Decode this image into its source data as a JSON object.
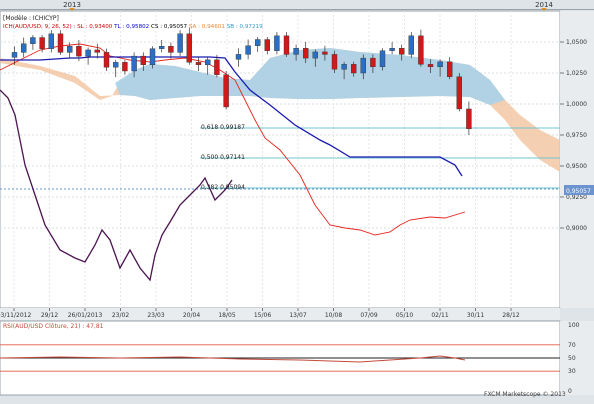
{
  "timeline": {
    "year_a": "2013",
    "year_b": "2014"
  },
  "main_panel": {
    "model": "[Modèle : ICHICYP]",
    "legend": [
      {
        "text": "ICH(AUD/USD, 9, 26, 52) :",
        "color": "#cc0000"
      },
      {
        "text": "SL : 0,93400",
        "color": "#cc0000"
      },
      {
        "text": "TL : 0,95802",
        "color": "#0000cc"
      },
      {
        "text": "CS : 0,95057",
        "color": "#000000"
      },
      {
        "text": "SA : 0,94601",
        "color": "#e08a3c"
      },
      {
        "text": "SB : 0,97219",
        "color": "#2f9ad0"
      }
    ],
    "y_ticks": [
      "1,0500",
      "1,0250",
      "1,0000",
      "0,9750",
      "0,9500",
      "0,9250",
      "0,9000"
    ],
    "x_ticks": [
      "03/11/2012",
      "29/12",
      "26/01/2013",
      "23/02",
      "23/03",
      "20/04",
      "18/05",
      "15/06",
      "13/07",
      "10/08",
      "07/09",
      "05/10",
      "02/11",
      "30/11",
      "28/12"
    ],
    "price_tag": "0,95057",
    "fib_labels": [
      "0,618 0,99187",
      "0,500 0,97141",
      "0,382 0,95094"
    ]
  },
  "rsi_panel": {
    "title": "RSI(AUD/USD Clôture, 21) : 47,81",
    "ticks": [
      "100",
      "70",
      "50",
      "30",
      "0"
    ]
  },
  "footer": {
    "copyright": "FXCM Marketscope © 2013"
  },
  "colors": {
    "bull": "#2a6fc4",
    "bear": "#d0191b",
    "tenkan": "#e5241c",
    "kijun": "#1a1ab0",
    "chikou": "#4b1450",
    "cloud_blue": "#a8d2ea",
    "cloud_orange": "#f2c7a3",
    "fib": "#6fc4cf",
    "rsi": "#c44a3a"
  },
  "chart_data": {
    "type": "candlestick",
    "interval": "weekly",
    "y_range": [
      0.88,
      1.065
    ],
    "candles": [
      {
        "o": 1.036,
        "h": 1.045,
        "l": 1.03,
        "c": 1.04
      },
      {
        "o": 1.04,
        "h": 1.052,
        "l": 1.036,
        "c": 1.047
      },
      {
        "o": 1.047,
        "h": 1.054,
        "l": 1.042,
        "c": 1.052
      },
      {
        "o": 1.052,
        "h": 1.054,
        "l": 1.04,
        "c": 1.043
      },
      {
        "o": 1.043,
        "h": 1.058,
        "l": 1.04,
        "c": 1.055
      },
      {
        "o": 1.055,
        "h": 1.058,
        "l": 1.038,
        "c": 1.04
      },
      {
        "o": 1.04,
        "h": 1.048,
        "l": 1.035,
        "c": 1.045
      },
      {
        "o": 1.045,
        "h": 1.05,
        "l": 1.033,
        "c": 1.037
      },
      {
        "o": 1.037,
        "h": 1.044,
        "l": 1.03,
        "c": 1.042
      },
      {
        "o": 1.042,
        "h": 1.047,
        "l": 1.035,
        "c": 1.04
      },
      {
        "o": 1.04,
        "h": 1.043,
        "l": 1.025,
        "c": 1.028
      },
      {
        "o": 1.028,
        "h": 1.034,
        "l": 1.02,
        "c": 1.032
      },
      {
        "o": 1.032,
        "h": 1.034,
        "l": 1.022,
        "c": 1.025
      },
      {
        "o": 1.025,
        "h": 1.04,
        "l": 1.02,
        "c": 1.037
      },
      {
        "o": 1.037,
        "h": 1.04,
        "l": 1.025,
        "c": 1.03
      },
      {
        "o": 1.03,
        "h": 1.045,
        "l": 1.027,
        "c": 1.043
      },
      {
        "o": 1.043,
        "h": 1.05,
        "l": 1.04,
        "c": 1.045
      },
      {
        "o": 1.045,
        "h": 1.048,
        "l": 1.035,
        "c": 1.04
      },
      {
        "o": 1.04,
        "h": 1.058,
        "l": 1.037,
        "c": 1.055
      },
      {
        "o": 1.055,
        "h": 1.06,
        "l": 1.03,
        "c": 1.032
      },
      {
        "o": 1.032,
        "h": 1.036,
        "l": 1.025,
        "c": 1.03
      },
      {
        "o": 1.03,
        "h": 1.036,
        "l": 1.022,
        "c": 1.034
      },
      {
        "o": 1.034,
        "h": 1.038,
        "l": 1.02,
        "c": 1.022
      },
      {
        "o": 1.022,
        "h": 1.025,
        "l": 0.994,
        "c": 0.996
      },
      {
        "o": 0.996,
        "h": 1.002,
        "l": 0.975,
        "c": 0.98
      },
      {
        "o": 0.98,
        "h": 0.986,
        "l": 0.96,
        "c": 0.965
      },
      {
        "o": 0.965,
        "h": 0.97,
        "l": 0.95,
        "c": 0.955
      },
      {
        "o": 0.955,
        "h": 0.962,
        "l": 0.94,
        "c": 0.945
      },
      {
        "o": 0.945,
        "h": 0.96,
        "l": 0.93,
        "c": 0.957
      },
      {
        "o": 0.957,
        "h": 0.96,
        "l": 0.928,
        "c": 0.932
      },
      {
        "o": 0.932,
        "h": 0.937,
        "l": 0.915,
        "c": 0.92
      },
      {
        "o": 0.92,
        "h": 0.935,
        "l": 0.91,
        "c": 0.925
      },
      {
        "o": 0.925,
        "h": 0.93,
        "l": 0.905,
        "c": 0.909
      },
      {
        "o": 0.909,
        "h": 0.922,
        "l": 0.902,
        "c": 0.918
      },
      {
        "o": 0.918,
        "h": 0.926,
        "l": 0.908,
        "c": 0.912
      },
      {
        "o": 0.912,
        "h": 0.94,
        "l": 0.908,
        "c": 0.933
      },
      {
        "o": 0.933,
        "h": 0.935,
        "l": 0.905,
        "c": 0.91
      },
      {
        "o": 0.91,
        "h": 0.915,
        "l": 0.886,
        "c": 0.89
      },
      {
        "o": 0.89,
        "h": 0.922,
        "l": 0.887,
        "c": 0.92
      },
      {
        "o": 0.92,
        "h": 0.925,
        "l": 0.897,
        "c": 0.902
      },
      {
        "o": 0.902,
        "h": 0.91,
        "l": 0.89,
        "c": 0.895
      },
      {
        "o": 0.895,
        "h": 0.928,
        "l": 0.89,
        "c": 0.925
      },
      {
        "o": 0.925,
        "h": 0.945,
        "l": 0.918,
        "c": 0.94
      },
      {
        "o": 0.94,
        "h": 0.95,
        "l": 0.93,
        "c": 0.934
      },
      {
        "o": 0.934,
        "h": 0.948,
        "l": 0.928,
        "c": 0.944
      },
      {
        "o": 0.944,
        "h": 0.97,
        "l": 0.94,
        "c": 0.966
      },
      {
        "o": 0.966,
        "h": 0.976,
        "l": 0.955,
        "c": 0.958
      },
      {
        "o": 0.958,
        "h": 0.962,
        "l": 0.948,
        "c": 0.951
      }
    ]
  }
}
